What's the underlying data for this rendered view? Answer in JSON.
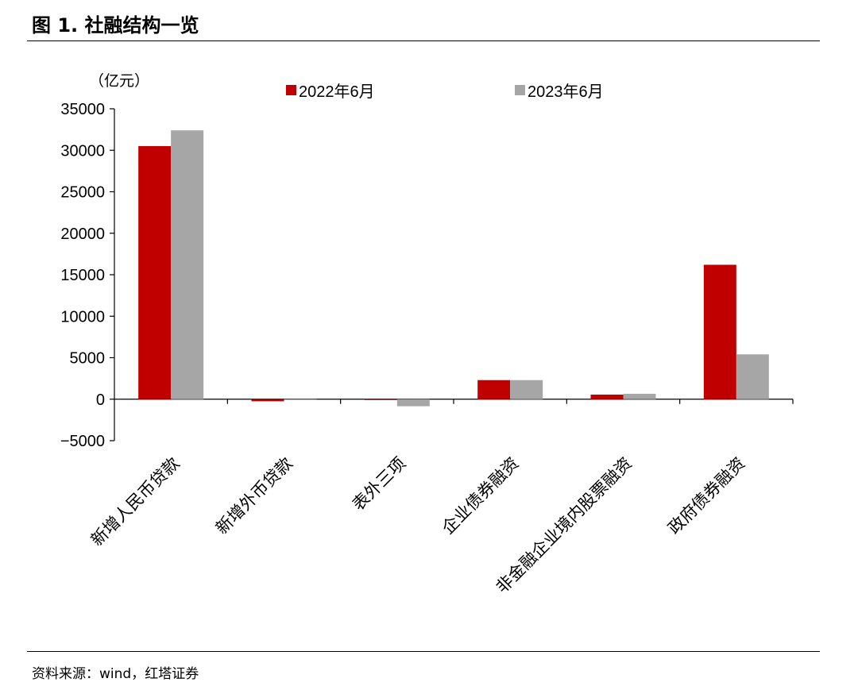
{
  "figure": {
    "title": "图 1. 社融结构一览",
    "source": "资料来源：wind，红塔证券"
  },
  "chart_data": {
    "type": "bar",
    "title": "",
    "unit_label": "（亿元）",
    "xlabel": "",
    "ylabel": "",
    "ylim": [
      -5000,
      35000
    ],
    "yticks": [
      35000,
      30000,
      25000,
      20000,
      15000,
      10000,
      5000,
      0,
      -5000
    ],
    "grid": false,
    "legend_position": "top",
    "categories": [
      "新增人民币贷款",
      "新增外币贷款",
      "表外三项",
      "企业债券融资",
      "非金融企业境内股票融资",
      "政府债券融资"
    ],
    "series": [
      {
        "name": "2022年6月",
        "color": "#c00000",
        "values": [
          30500,
          -250,
          -100,
          2300,
          550,
          16200
        ]
      },
      {
        "name": "2023年6月",
        "color": "#a6a6a6",
        "values": [
          32400,
          -100,
          -850,
          2300,
          650,
          5400
        ]
      }
    ]
  }
}
